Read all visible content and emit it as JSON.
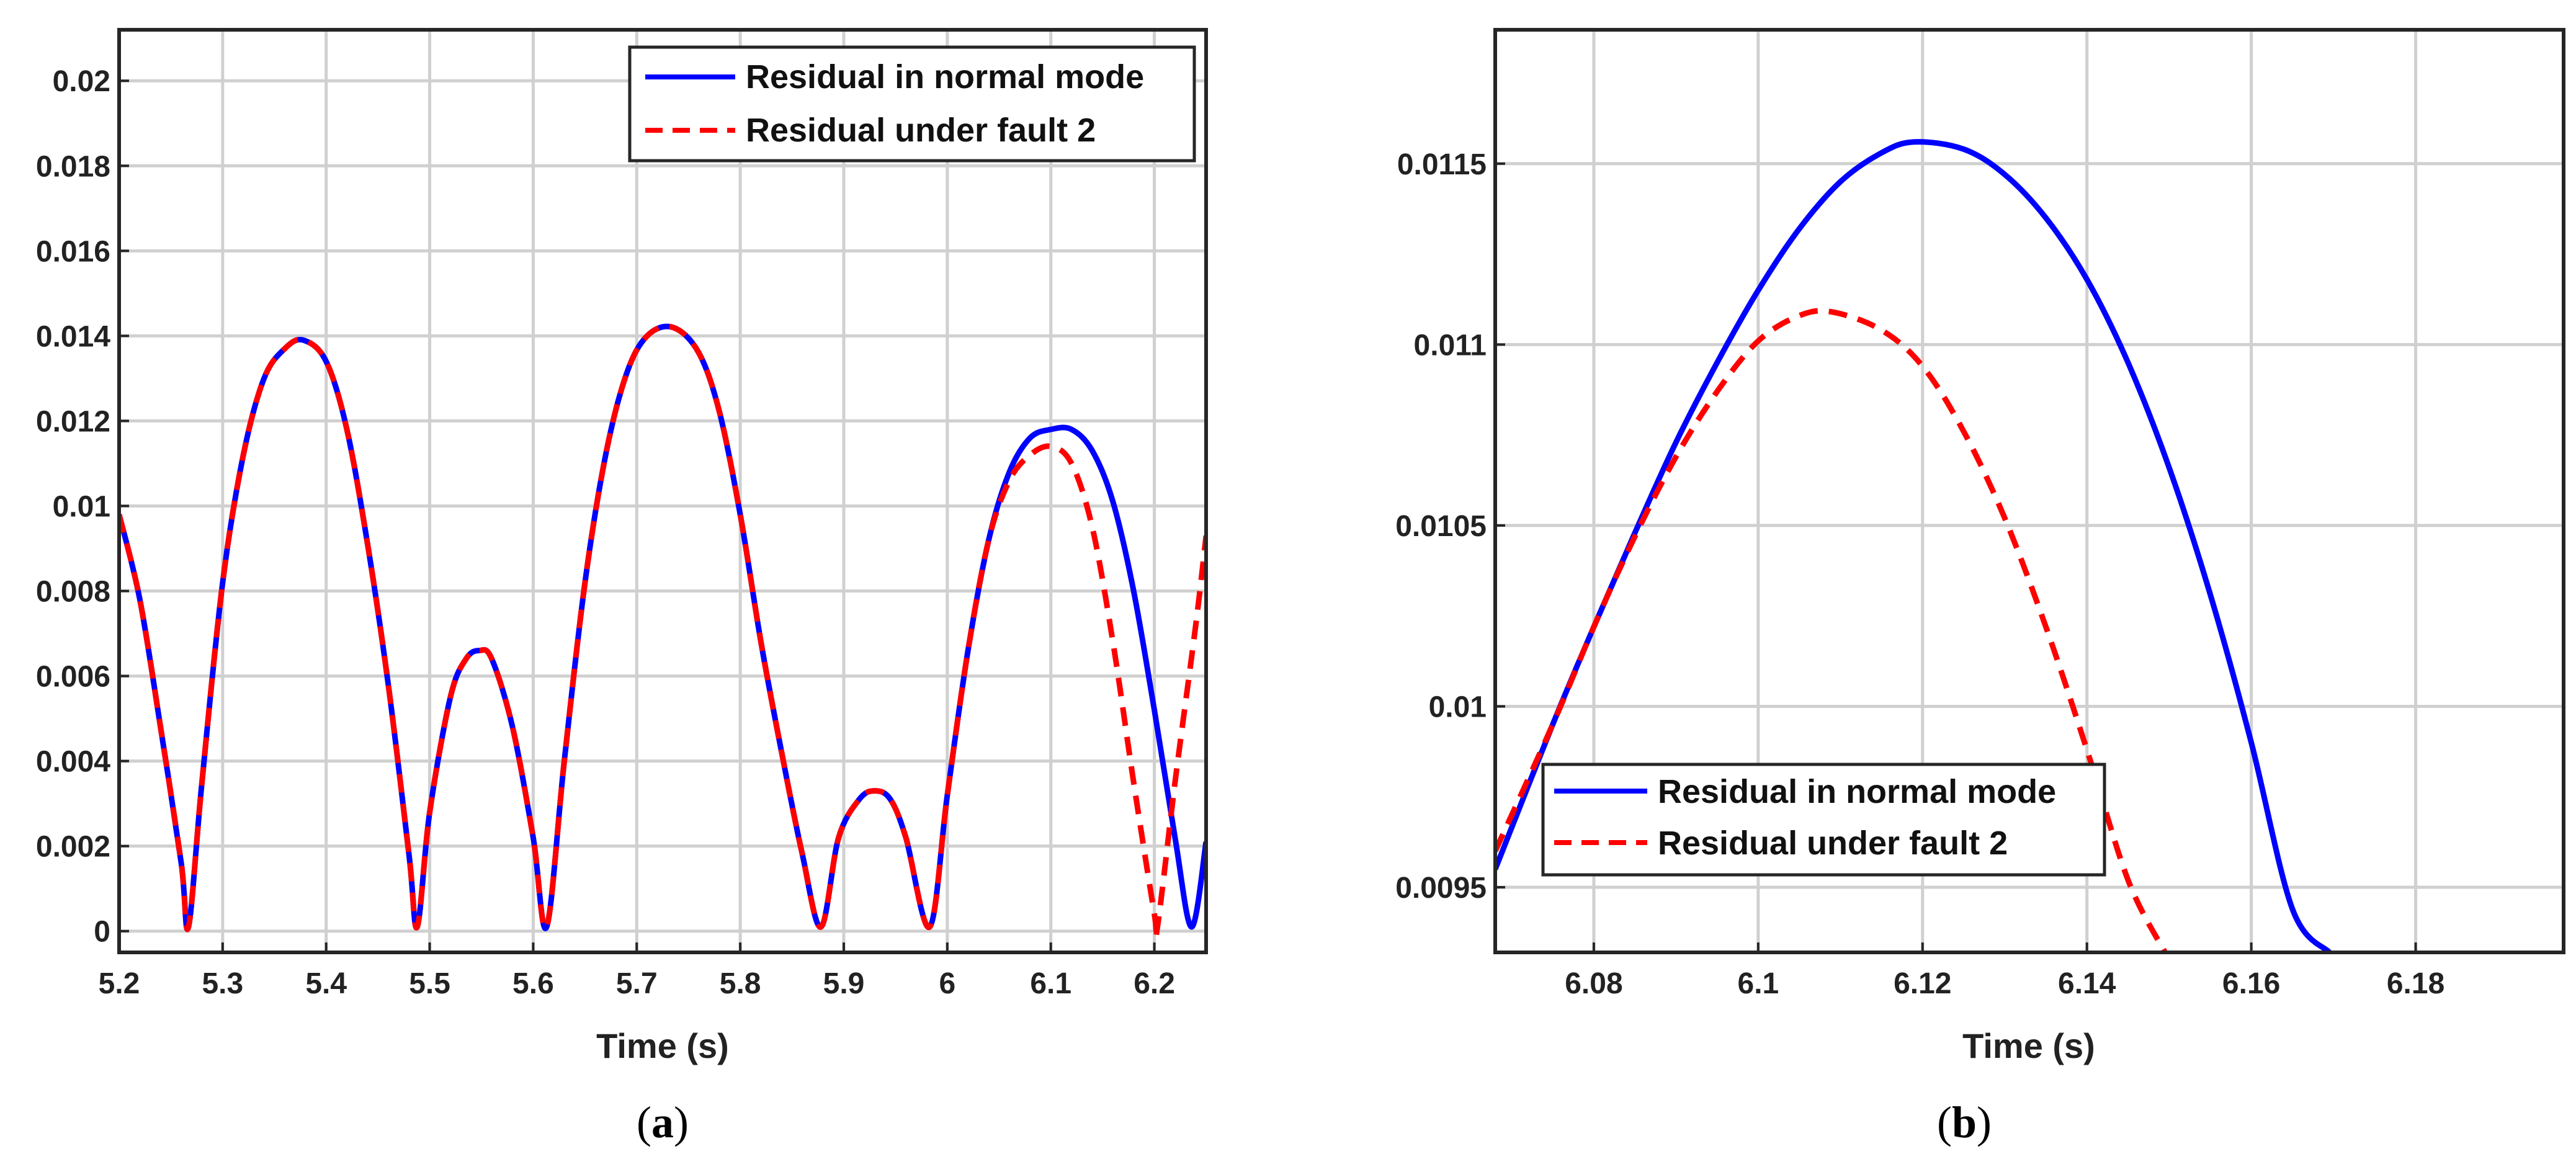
{
  "colors": {
    "normal": "#0000ff",
    "fault": "#ff0000",
    "grid": "#d0d0d0",
    "axis": "#262626"
  },
  "chart_data": [
    {
      "panel": "(a)",
      "caption_letter": "a",
      "type": "line",
      "xlabel": "Time (s)",
      "ylabel": "",
      "xlim": [
        5.2,
        6.25
      ],
      "ylim": [
        -0.0005,
        0.0212
      ],
      "xticks": [
        5.2,
        5.3,
        5.4,
        5.5,
        5.6,
        5.7,
        5.8,
        5.9,
        6.0,
        6.1,
        6.2
      ],
      "xtick_labels": [
        "5.2",
        "5.3",
        "5.4",
        "5.5",
        "5.6",
        "5.7",
        "5.8",
        "5.9",
        "6",
        "6.1",
        "6.2"
      ],
      "yticks": [
        0,
        0.002,
        0.004,
        0.006,
        0.008,
        0.01,
        0.012,
        0.014,
        0.016,
        0.018,
        0.02
      ],
      "ytick_labels": [
        "0",
        "0.002",
        "0.004",
        "0.006",
        "0.008",
        "0.01",
        "0.012",
        "0.014",
        "0.016",
        "0.018",
        "0.02"
      ],
      "grid": true,
      "legend_position": "top-right",
      "series": [
        {
          "name": "Residual in normal mode",
          "style": "solid",
          "color": "#0000ff",
          "points": [
            [
              5.2,
              0.0098
            ],
            [
              5.22,
              0.0078
            ],
            [
              5.24,
              0.0048
            ],
            [
              5.26,
              0.0016
            ],
            [
              5.267,
              0.0001
            ],
            [
              5.28,
              0.0035
            ],
            [
              5.3,
              0.0082
            ],
            [
              5.32,
              0.0112
            ],
            [
              5.34,
              0.013
            ],
            [
              5.36,
              0.0137
            ],
            [
              5.378,
              0.0139
            ],
            [
              5.4,
              0.0134
            ],
            [
              5.42,
              0.0118
            ],
            [
              5.44,
              0.0091
            ],
            [
              5.46,
              0.0058
            ],
            [
              5.48,
              0.0018
            ],
            [
              5.488,
              0.0001
            ],
            [
              5.5,
              0.0028
            ],
            [
              5.52,
              0.0055
            ],
            [
              5.535,
              0.0064
            ],
            [
              5.548,
              0.0066
            ],
            [
              5.56,
              0.0064
            ],
            [
              5.58,
              0.0048
            ],
            [
              5.6,
              0.0022
            ],
            [
              5.613,
              0.0001
            ],
            [
              5.63,
              0.004
            ],
            [
              5.65,
              0.0082
            ],
            [
              5.67,
              0.0112
            ],
            [
              5.69,
              0.0131
            ],
            [
              5.71,
              0.014
            ],
            [
              5.735,
              0.0142
            ],
            [
              5.76,
              0.0136
            ],
            [
              5.78,
              0.0122
            ],
            [
              5.8,
              0.0098
            ],
            [
              5.82,
              0.0068
            ],
            [
              5.84,
              0.0042
            ],
            [
              5.86,
              0.0018
            ],
            [
              5.878,
              0.0001
            ],
            [
              5.895,
              0.0022
            ],
            [
              5.915,
              0.0031
            ],
            [
              5.93,
              0.0033
            ],
            [
              5.945,
              0.0031
            ],
            [
              5.96,
              0.0022
            ],
            [
              5.983,
              0.0001
            ],
            [
              6.0,
              0.0032
            ],
            [
              6.02,
              0.0066
            ],
            [
              6.04,
              0.0092
            ],
            [
              6.06,
              0.0108
            ],
            [
              6.08,
              0.0116
            ],
            [
              6.1,
              0.0118
            ],
            [
              6.12,
              0.0118
            ],
            [
              6.14,
              0.0113
            ],
            [
              6.16,
              0.0101
            ],
            [
              6.18,
              0.008
            ],
            [
              6.2,
              0.0052
            ],
            [
              6.22,
              0.0022
            ],
            [
              6.236,
              0.0001
            ],
            [
              6.25,
              0.0021
            ]
          ]
        },
        {
          "name": "Residual under fault 2",
          "style": "dashed",
          "color": "#ff0000",
          "points": [
            [
              5.2,
              0.0098
            ],
            [
              5.22,
              0.0078
            ],
            [
              5.24,
              0.0048
            ],
            [
              5.26,
              0.0016
            ],
            [
              5.267,
              0.0001
            ],
            [
              5.28,
              0.0035
            ],
            [
              5.3,
              0.0082
            ],
            [
              5.32,
              0.0112
            ],
            [
              5.34,
              0.013
            ],
            [
              5.36,
              0.0137
            ],
            [
              5.378,
              0.0139
            ],
            [
              5.4,
              0.0134
            ],
            [
              5.42,
              0.0118
            ],
            [
              5.44,
              0.0091
            ],
            [
              5.46,
              0.0058
            ],
            [
              5.48,
              0.0018
            ],
            [
              5.488,
              0.0001
            ],
            [
              5.5,
              0.0028
            ],
            [
              5.52,
              0.0055
            ],
            [
              5.535,
              0.0064
            ],
            [
              5.548,
              0.0066
            ],
            [
              5.56,
              0.0064
            ],
            [
              5.58,
              0.0048
            ],
            [
              5.6,
              0.0022
            ],
            [
              5.613,
              0.0001
            ],
            [
              5.63,
              0.004
            ],
            [
              5.65,
              0.0082
            ],
            [
              5.67,
              0.0112
            ],
            [
              5.69,
              0.0131
            ],
            [
              5.71,
              0.014
            ],
            [
              5.735,
              0.0142
            ],
            [
              5.76,
              0.0136
            ],
            [
              5.78,
              0.0122
            ],
            [
              5.8,
              0.0098
            ],
            [
              5.82,
              0.0068
            ],
            [
              5.84,
              0.0042
            ],
            [
              5.86,
              0.0018
            ],
            [
              5.878,
              0.0001
            ],
            [
              5.895,
              0.0022
            ],
            [
              5.915,
              0.0031
            ],
            [
              5.93,
              0.0033
            ],
            [
              5.945,
              0.0031
            ],
            [
              5.96,
              0.0022
            ],
            [
              5.983,
              0.0001
            ],
            [
              6.0,
              0.0032
            ],
            [
              6.02,
              0.0066
            ],
            [
              6.04,
              0.0092
            ],
            [
              6.06,
              0.0106
            ],
            [
              6.08,
              0.0112
            ],
            [
              6.1,
              0.0114
            ],
            [
              6.12,
              0.011
            ],
            [
              6.14,
              0.0095
            ],
            [
              6.16,
              0.0068
            ],
            [
              6.18,
              0.0035
            ],
            [
              6.2,
              0.0004
            ],
            [
              6.203,
              0.0001
            ],
            [
              6.22,
              0.0035
            ],
            [
              6.24,
              0.0072
            ],
            [
              6.25,
              0.0093
            ]
          ]
        }
      ]
    },
    {
      "panel": "(b)",
      "caption_letter": "b",
      "type": "line",
      "xlabel": "Time (s)",
      "ylabel": "",
      "xlim": [
        6.068,
        6.198
      ],
      "ylim": [
        0.00932,
        0.01187
      ],
      "xticks": [
        6.08,
        6.1,
        6.12,
        6.14,
        6.16,
        6.18
      ],
      "xtick_labels": [
        "6.08",
        "6.1",
        "6.12",
        "6.14",
        "6.16",
        "6.18"
      ],
      "yticks": [
        0.0095,
        0.01,
        0.0105,
        0.011,
        0.0115
      ],
      "ytick_labels": [
        "0.0095",
        "0.01",
        "0.0105",
        "0.011",
        "0.0115"
      ],
      "grid": true,
      "legend_position": "bottom-left",
      "series": [
        {
          "name": "Residual in normal mode",
          "style": "solid",
          "color": "#0000ff",
          "points": [
            [
              6.068,
              0.00955
            ],
            [
              6.075,
              0.00995
            ],
            [
              6.08,
              0.01022
            ],
            [
              6.085,
              0.01048
            ],
            [
              6.09,
              0.01073
            ],
            [
              6.095,
              0.01095
            ],
            [
              6.1,
              0.01115
            ],
            [
              6.105,
              0.01132
            ],
            [
              6.11,
              0.01145
            ],
            [
              6.115,
              0.01153
            ],
            [
              6.119,
              0.01156
            ],
            [
              6.125,
              0.01154
            ],
            [
              6.13,
              0.01147
            ],
            [
              6.135,
              0.01135
            ],
            [
              6.14,
              0.01118
            ],
            [
              6.145,
              0.01095
            ],
            [
              6.15,
              0.01066
            ],
            [
              6.155,
              0.01031
            ],
            [
              6.16,
              0.0099
            ],
            [
              6.165,
              0.00944
            ],
            [
              6.1695,
              0.00932
            ]
          ]
        },
        {
          "name": "Residual under fault 2",
          "style": "dashed",
          "color": "#ff0000",
          "points": [
            [
              6.068,
              0.0096
            ],
            [
              6.075,
              0.00995
            ],
            [
              6.08,
              0.01022
            ],
            [
              6.085,
              0.01047
            ],
            [
              6.09,
              0.01069
            ],
            [
              6.095,
              0.01087
            ],
            [
              6.1,
              0.01101
            ],
            [
              6.105,
              0.01108
            ],
            [
              6.109,
              0.01109
            ],
            [
              6.115,
              0.01104
            ],
            [
              6.12,
              0.01094
            ],
            [
              6.125,
              0.01076
            ],
            [
              6.13,
              0.01052
            ],
            [
              6.135,
              0.01022
            ],
            [
              6.14,
              0.00988
            ],
            [
              6.145,
              0.00952
            ],
            [
              6.1495,
              0.00932
            ]
          ]
        }
      ]
    }
  ]
}
